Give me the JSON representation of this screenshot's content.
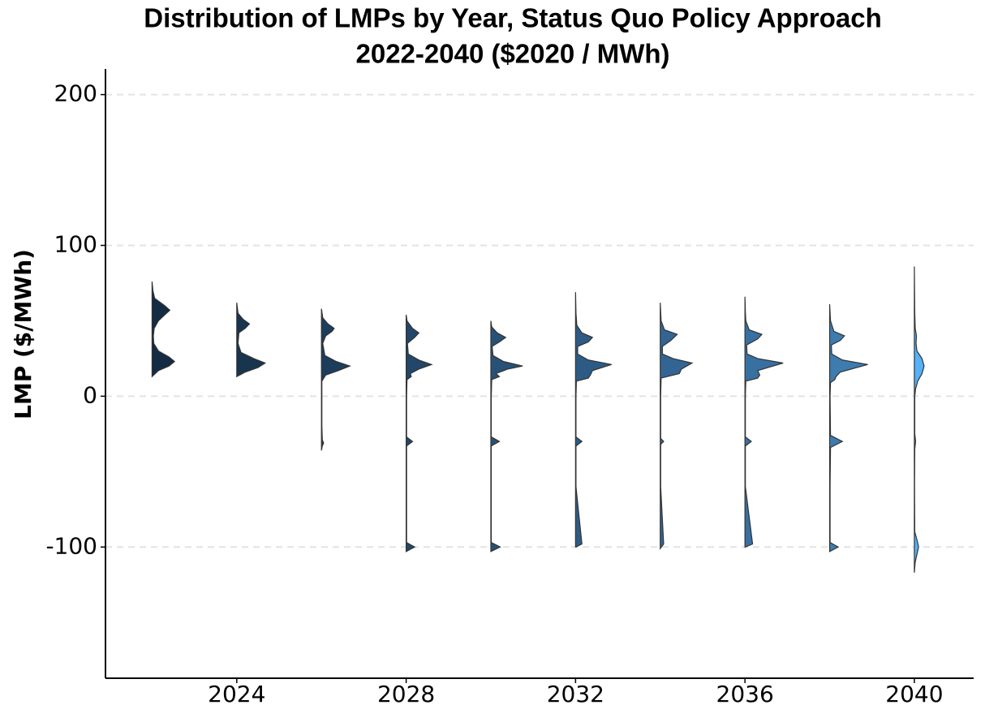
{
  "chart_data": {
    "type": "half-violin",
    "title": "Distribution of LMPs by Year, Status Quo Policy  Approach",
    "subtitle": "2022-2040 ($2020 / MWh)",
    "y_label": "LMP ($/MWh)",
    "xlim": [
      2020.9,
      2041.4
    ],
    "xticks": [
      2024,
      2028,
      2032,
      2036,
      2040
    ],
    "ylim": [
      -187,
      217
    ],
    "yticks": [
      -100,
      0,
      100,
      200
    ],
    "grid": true,
    "violins": [
      {
        "x": 2022,
        "color": "#132b43",
        "y": [
          13,
          17,
          20,
          23,
          26,
          30,
          35,
          40,
          45,
          50,
          54,
          57,
          60,
          65,
          70,
          76
        ],
        "width": [
          0,
          0.15,
          0.4,
          0.53,
          0.4,
          0.15,
          0.04,
          0.03,
          0.05,
          0.15,
          0.3,
          0.42,
          0.3,
          0.06,
          0.02,
          0
        ]
      },
      {
        "x": 2024,
        "color": "#18344f",
        "y": [
          13,
          16,
          19,
          22,
          25,
          29,
          35,
          42,
          45,
          48,
          51,
          55,
          62
        ],
        "width": [
          0,
          0.2,
          0.5,
          0.67,
          0.4,
          0.1,
          0.03,
          0.05,
          0.2,
          0.3,
          0.15,
          0.03,
          0
        ]
      },
      {
        "x": 2026,
        "color": "#1d3d5c",
        "y": [
          -36,
          -33,
          -31,
          -29,
          -20,
          10,
          14,
          17,
          20,
          23,
          27,
          35,
          40,
          43,
          45,
          48,
          52,
          58
        ],
        "width": [
          0,
          0.02,
          0.05,
          0.02,
          0.01,
          0.01,
          0.1,
          0.4,
          0.67,
          0.35,
          0.08,
          0.03,
          0.1,
          0.25,
          0.3,
          0.15,
          0.03,
          0
        ]
      },
      {
        "x": 2028,
        "color": "#224769",
        "y": [
          -103,
          -100,
          -97,
          -60,
          -33,
          -30,
          -27,
          0,
          11,
          13,
          15,
          18,
          21,
          24,
          28,
          35,
          39,
          42,
          45,
          50,
          54
        ],
        "width": [
          0,
          0.2,
          0.01,
          0.01,
          0.01,
          0.15,
          0.01,
          0.01,
          0.02,
          0.12,
          0.1,
          0.3,
          0.6,
          0.3,
          0.05,
          0.03,
          0.2,
          0.3,
          0.15,
          0.02,
          0
        ]
      },
      {
        "x": 2030,
        "color": "#275177",
        "y": [
          -103,
          -100,
          -97,
          -60,
          -33,
          -30,
          -27,
          0,
          11,
          13,
          15,
          18,
          20,
          23,
          27,
          33,
          36,
          39,
          42,
          46,
          50
        ],
        "width": [
          0,
          0.22,
          0.01,
          0.01,
          0.01,
          0.2,
          0.01,
          0.01,
          0.02,
          0.2,
          0.12,
          0.4,
          0.75,
          0.3,
          0.05,
          0.03,
          0.2,
          0.35,
          0.15,
          0.02,
          0
        ]
      },
      {
        "x": 2032,
        "color": "#2d5b85",
        "y": [
          -100,
          -98,
          -60,
          -33,
          -30,
          -27,
          0,
          10,
          12,
          14,
          17,
          21,
          24,
          28,
          33,
          36,
          39,
          42,
          47,
          55,
          69
        ],
        "width": [
          0.01,
          0.15,
          0.01,
          0.01,
          0.15,
          0.01,
          0.01,
          0.02,
          0.3,
          0.35,
          0.4,
          0.85,
          0.3,
          0.05,
          0.05,
          0.3,
          0.4,
          0.15,
          0.03,
          0.01,
          0
        ]
      },
      {
        "x": 2034,
        "color": "#326593",
        "y": [
          -101,
          -98,
          -60,
          -32,
          -30,
          -28,
          0,
          12,
          15,
          18,
          22,
          25,
          28,
          33,
          37,
          41,
          44,
          50,
          62
        ],
        "width": [
          0,
          0.08,
          0.01,
          0.01,
          0.08,
          0.01,
          0.01,
          0.02,
          0.45,
          0.5,
          0.75,
          0.3,
          0.05,
          0.05,
          0.25,
          0.4,
          0.1,
          0.02,
          0
        ]
      },
      {
        "x": 2036,
        "color": "#3870a1",
        "y": [
          -100,
          -98,
          -60,
          -33,
          -30,
          -27,
          0,
          10,
          12,
          14,
          17,
          22,
          25,
          28,
          34,
          38,
          41,
          44,
          50,
          56,
          66
        ],
        "width": [
          0.01,
          0.18,
          0.01,
          0.01,
          0.15,
          0.01,
          0.01,
          0.02,
          0.3,
          0.35,
          0.3,
          0.9,
          0.3,
          0.05,
          0.04,
          0.3,
          0.4,
          0.1,
          0.02,
          0.01,
          0
        ]
      },
      {
        "x": 2038,
        "color": "#3e7baf",
        "y": [
          -103,
          -100,
          -97,
          -60,
          -34,
          -30,
          -26,
          0,
          9,
          11,
          13,
          16,
          21,
          24,
          28,
          34,
          37,
          40,
          43,
          50,
          61
        ],
        "width": [
          0,
          0.2,
          0.01,
          0.01,
          0.02,
          0.3,
          0.02,
          0.01,
          0.02,
          0.12,
          0.15,
          0.25,
          0.9,
          0.3,
          0.05,
          0.04,
          0.25,
          0.35,
          0.1,
          0.02,
          0
        ]
      },
      {
        "x": 2040,
        "color": "#56b1f7",
        "y": [
          -117,
          -110,
          -105,
          -100,
          -95,
          -90,
          -60,
          -35,
          -30,
          -25,
          0,
          5,
          10,
          15,
          20,
          25,
          30,
          35,
          40,
          45,
          55,
          70,
          86
        ],
        "width": [
          0,
          0.02,
          0.06,
          0.1,
          0.06,
          0.01,
          0.005,
          0.01,
          0.03,
          0.01,
          0.01,
          0.03,
          0.08,
          0.18,
          0.23,
          0.18,
          0.06,
          0.04,
          0.05,
          0.02,
          0.01,
          0.005,
          0
        ]
      }
    ]
  }
}
